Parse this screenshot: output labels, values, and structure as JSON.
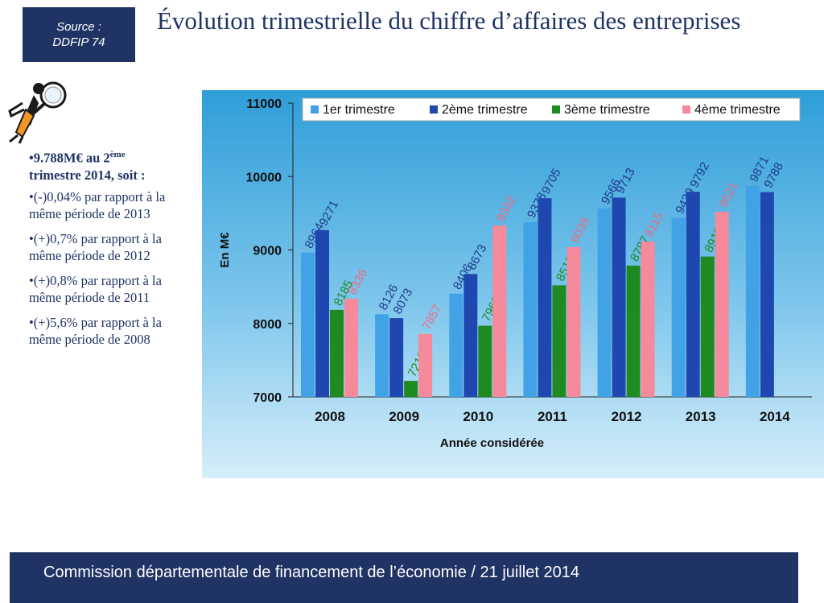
{
  "source": {
    "line1": "Source :",
    "line2": "DDFIP 74"
  },
  "title": "Évolution trimestrielle du chiffre d’affaires des entreprises",
  "notes": {
    "headline_pre": "•9.788M€ au 2",
    "headline_sup": "ème",
    "headline_post": "trimestre 2014, soit :",
    "items": [
      "•(-)0,04% par rapport à la même période de 2013",
      "•(+)0,7% par rapport à la même période de 2012",
      "•(+)0,8% par rapport à la même période de 2011",
      "•(+)5,6% par rapport à la même période de 2008"
    ]
  },
  "colors": {
    "navy": "#1f3464",
    "series": [
      "#41a3e6",
      "#1f47b0",
      "#1e8a22",
      "#f48a9c"
    ],
    "labels": [
      "#1f3a8a",
      "#1f3a8a",
      "#1e8a22",
      "#f06a82"
    ]
  },
  "chart_data": {
    "type": "bar",
    "xlabel": "Année considérée",
    "ylabel": "En M€",
    "ylim": [
      7000,
      11000
    ],
    "yticks": [
      "7000",
      "8000",
      "9000",
      "10000",
      "11000"
    ],
    "grid": false,
    "legend_position": "top",
    "categories": [
      "2008",
      "2009",
      "2010",
      "2011",
      "2012",
      "2013",
      "2014"
    ],
    "series": [
      {
        "name": "1er trimestre",
        "values": [
          8964,
          8126,
          8406,
          9378,
          9566,
          9439,
          9871
        ]
      },
      {
        "name": "2ème trimestre",
        "values": [
          9271,
          8073,
          8673,
          9705,
          9713,
          9792,
          9788
        ]
      },
      {
        "name": "3ème trimestre",
        "values": [
          8185,
          7218,
          7969,
          8519,
          8787,
          8911,
          null
        ]
      },
      {
        "name": "4ème trimestre",
        "values": [
          8336,
          7857,
          9332,
          9039,
          9115,
          9521,
          null
        ]
      }
    ]
  },
  "footer": "Commission départementale de financement de l’économie / 21 juillet 2014"
}
